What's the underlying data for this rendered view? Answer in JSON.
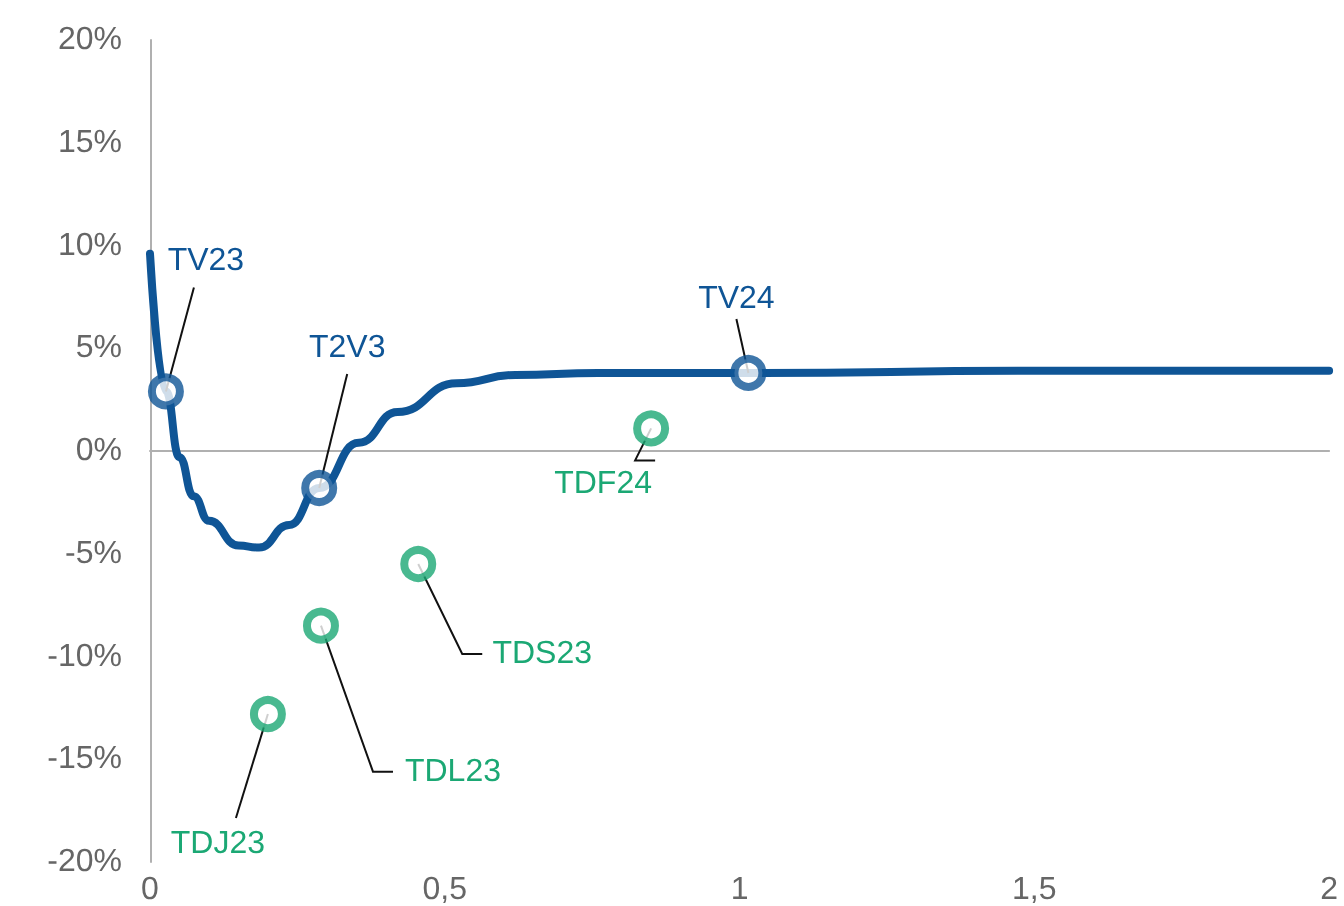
{
  "chart_data": {
    "type": "line",
    "series": [
      {
        "color": "#0f5596",
        "marker": "none",
        "x": [
          0,
          0.027,
          0.05,
          0.074,
          0.1,
          0.15,
          0.185,
          0.236,
          0.287,
          0.354,
          0.42,
          0.52,
          0.62,
          0.76,
          1.015,
          1.5,
          2
        ],
        "values": [
          9.6,
          2.9,
          -0.3,
          -2.2,
          -3.4,
          -4.6,
          -4.7,
          -3.6,
          -1.8,
          0.4,
          1.9,
          3.3,
          3.7,
          3.8,
          3.8,
          3.9,
          3.9
        ]
      },
      {
        "type": "scatter",
        "color": "#0f5596",
        "marker": "circle",
        "x": [
          0.027,
          0.287,
          1.015
        ],
        "values": [
          2.9,
          -1.8,
          3.8
        ]
      },
      {
        "type": "scatter",
        "color": "#1ba874",
        "marker": "circle",
        "x": [
          0.85,
          0.455,
          0.29,
          0.2
        ],
        "values": [
          1.1,
          -5.5,
          -8.5,
          -12.8
        ]
      }
    ],
    "annotations": [
      {
        "text": "TV23",
        "x": 0.027,
        "y": 2.9
      },
      {
        "text": "T2V3",
        "x": 0.287,
        "y": -1.8
      },
      {
        "text": "TV24",
        "x": 1.015,
        "y": 3.8
      },
      {
        "text": "TDF24",
        "x": 0.85,
        "y": 1.1
      },
      {
        "text": "TDS23",
        "x": 0.455,
        "y": -5.5
      },
      {
        "text": "TDL23",
        "x": 0.29,
        "y": -8.5
      },
      {
        "text": "TDJ23",
        "x": 0.2,
        "y": -12.8
      }
    ],
    "xlim": [
      0,
      2
    ],
    "xticks": [
      {
        "value": 0,
        "label": "0"
      },
      {
        "value": 0.5,
        "label": "0,5"
      },
      {
        "value": 1,
        "label": "1"
      },
      {
        "value": 1.5,
        "label": "1,5"
      },
      {
        "value": 2,
        "label": "2"
      }
    ],
    "ylim": [
      -20,
      20
    ],
    "yticks": [
      {
        "value": -20,
        "label": "-20%"
      },
      {
        "value": -15,
        "label": "-15%"
      },
      {
        "value": -10,
        "label": "-10%"
      },
      {
        "value": -5,
        "label": "-5%"
      },
      {
        "value": 0,
        "label": "0%"
      },
      {
        "value": 5,
        "label": "5%"
      },
      {
        "value": 10,
        "label": "10%"
      },
      {
        "value": 15,
        "label": "15%"
      },
      {
        "value": 20,
        "label": "20%"
      }
    ],
    "tick_labels": "xy"
  }
}
